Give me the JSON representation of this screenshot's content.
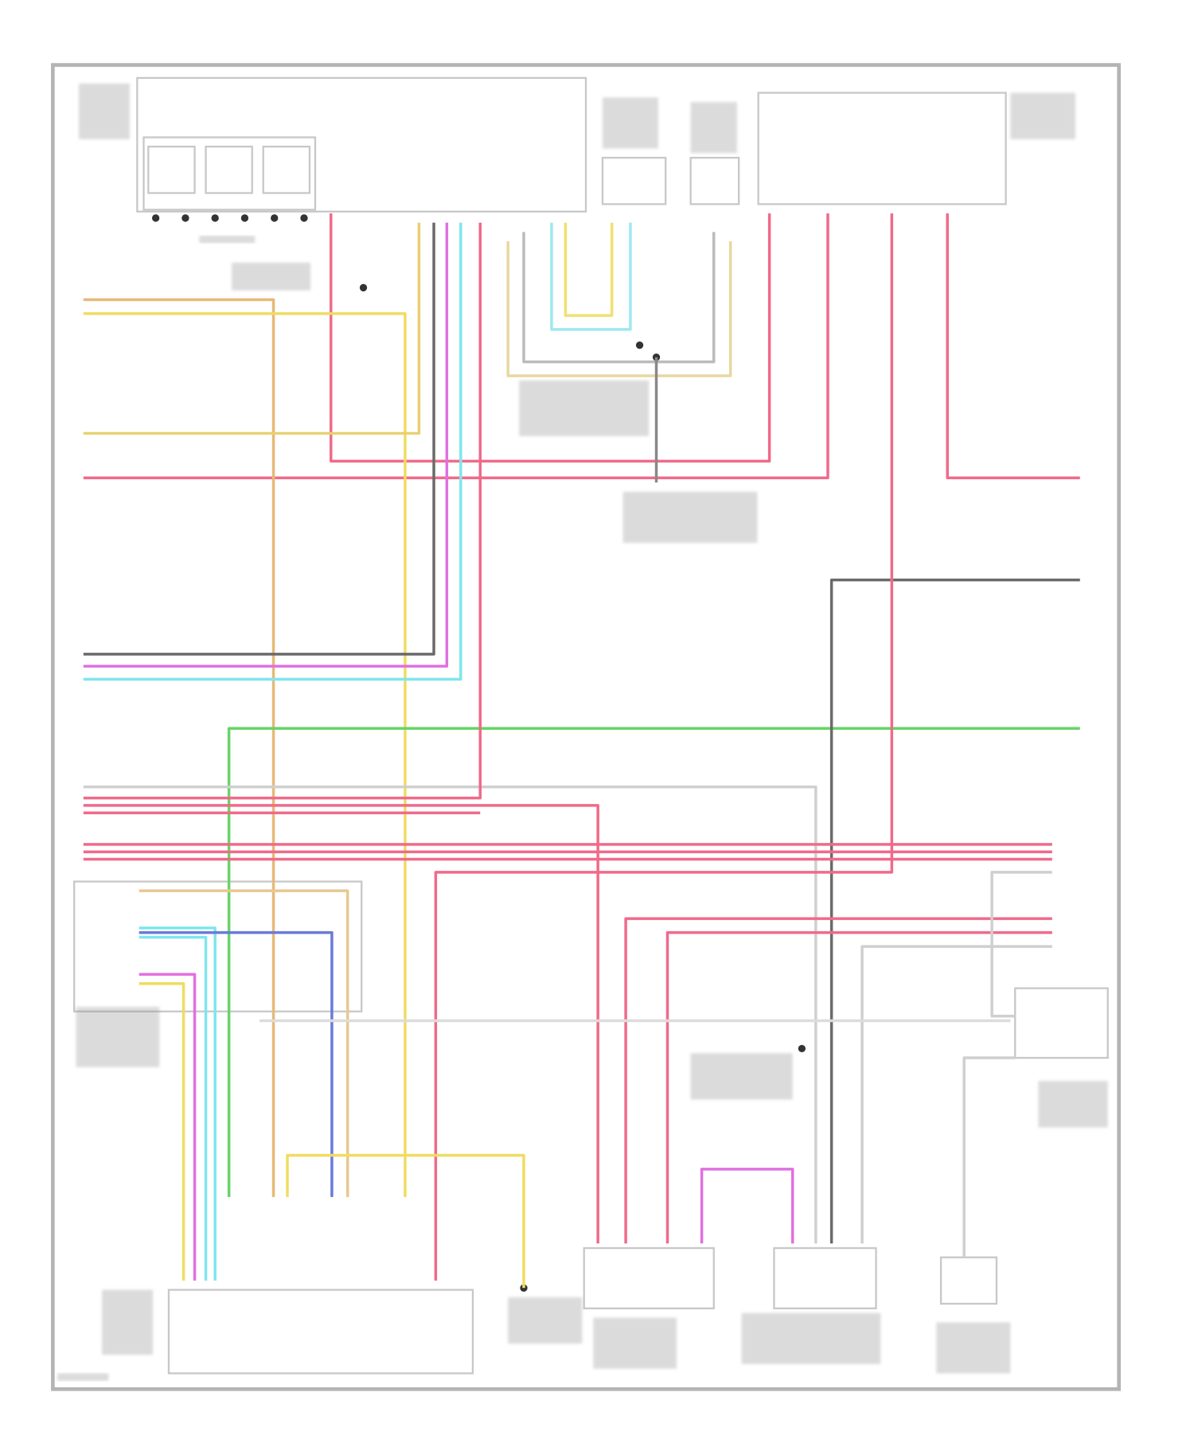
{
  "diagram": {
    "type": "wiring-schematic",
    "text_legible": false,
    "colors": {
      "border": "#b4b4b4",
      "pink": "#f06a8a",
      "tan": "#e8b878",
      "yellow": "#f0dc60",
      "dark_gray": "#6a6a6a",
      "violet": "#e070e0",
      "cyan": "#7ee6ee",
      "green": "#66d466",
      "blue": "#6a7ad8",
      "light_gray": "#cfcfcf"
    }
  }
}
